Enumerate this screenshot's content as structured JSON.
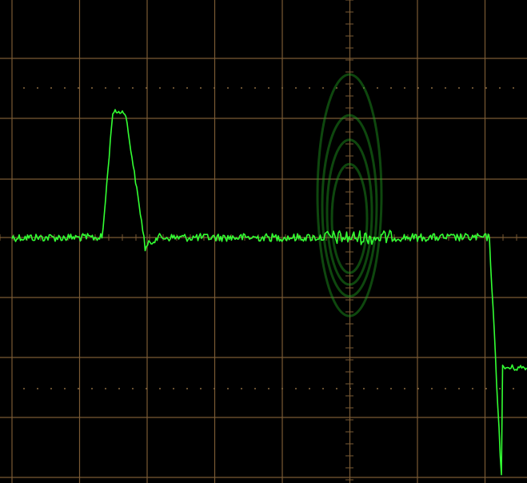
{
  "screen": {
    "background": "#000000",
    "grid_color": "#7a5a34",
    "dot_color": "#8a6a40",
    "trace_color": "#33ff33",
    "ghost_color": "#1f9e1f"
  },
  "grid": {
    "horizontal_divisions": 8,
    "vertical_divisions": 8
  },
  "trace": {
    "baseline_level": 0,
    "pulse": {
      "start_div": 1.35,
      "end_div": 1.95,
      "peak_level": 1.9
    },
    "step_down": {
      "at_div": 7.0,
      "level": -2.1
    }
  },
  "ghost_ellipses": [
    {
      "half_height": 0.9
    },
    {
      "half_height": 1.2
    },
    {
      "half_height": 1.5
    },
    {
      "half_height": 2.0
    }
  ]
}
